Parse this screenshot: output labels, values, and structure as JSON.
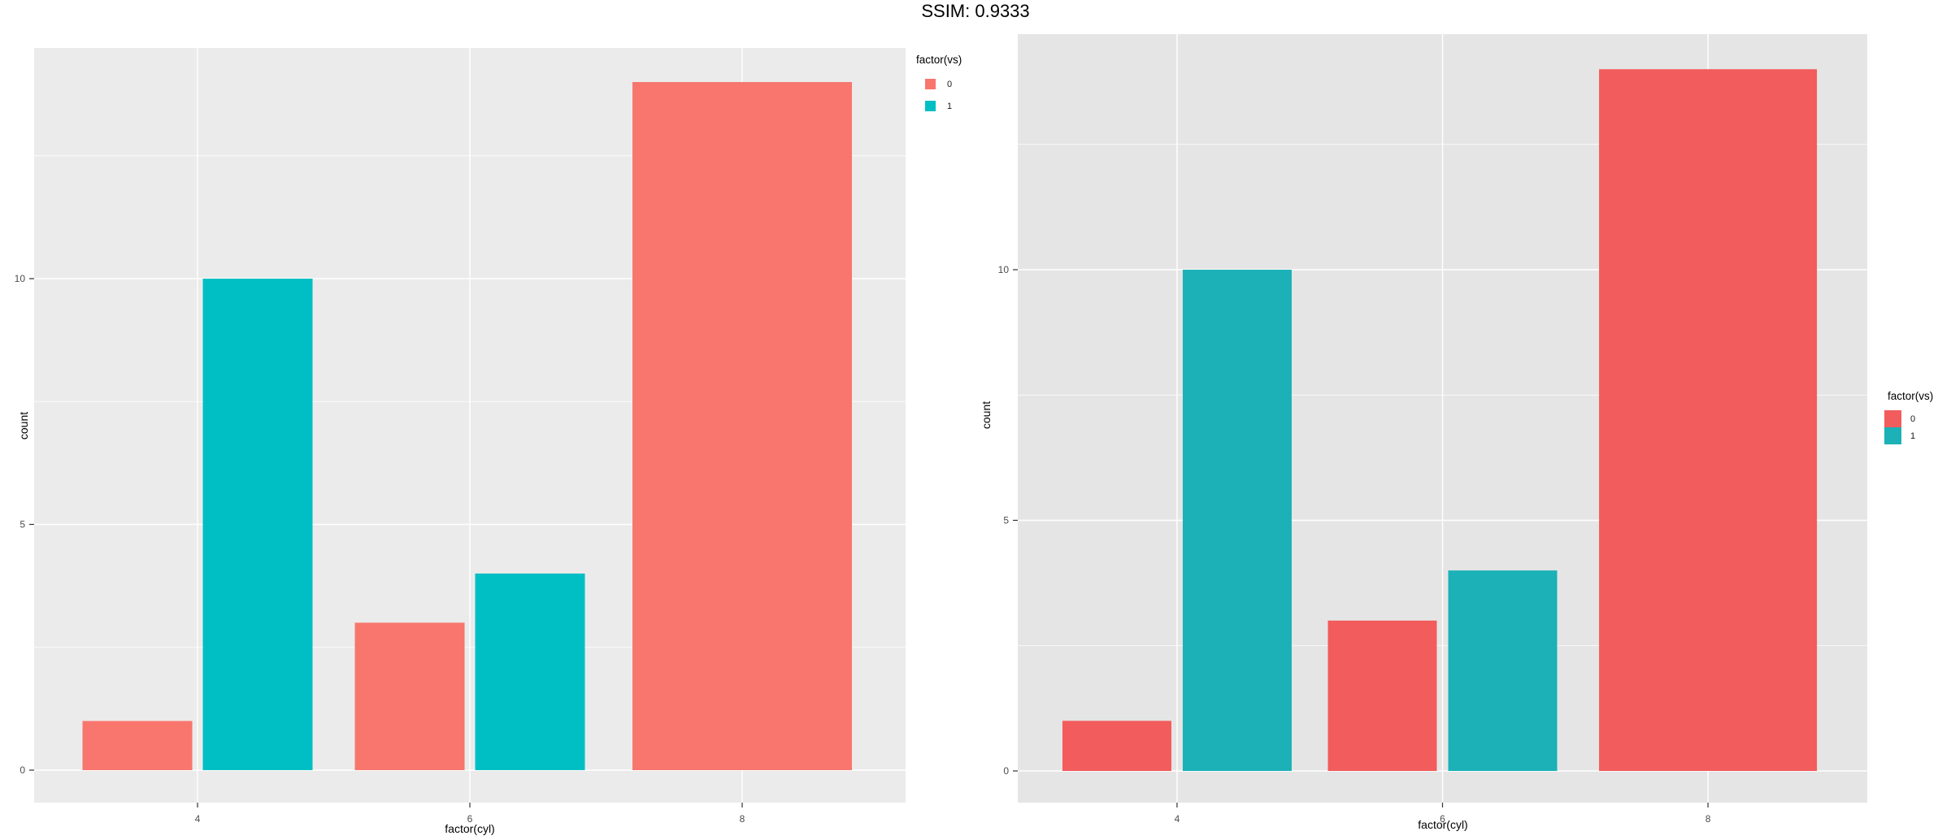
{
  "title": "SSIM: 0.9333",
  "chart_data": [
    {
      "type": "bar",
      "name": "original-plot",
      "categories": [
        "4",
        "6",
        "8"
      ],
      "series": [
        {
          "name": "0",
          "color": "#F8766D",
          "values": [
            1,
            3,
            14
          ]
        },
        {
          "name": "1",
          "color": "#00BFC4",
          "values": [
            10,
            4,
            0
          ]
        }
      ],
      "title": "",
      "xlabel": "factor(cyl)",
      "ylabel": "count",
      "yticks": [
        0,
        5,
        10
      ],
      "ytick_labels": [
        "0",
        "5",
        "10"
      ],
      "ylim": [
        -0.7,
        14.7
      ],
      "grid": "on",
      "panel_bg": "#EBEBEB",
      "grid_color": "#FFFFFF",
      "tick_text_color": "#4D4D4D",
      "tick_mark_color": "#333333",
      "legend": {
        "title": "factor(vs)",
        "position": "top-right-outside",
        "labels": [
          "0",
          "1"
        ]
      }
    },
    {
      "type": "bar",
      "name": "recreated-plot",
      "categories": [
        "4",
        "6",
        "8"
      ],
      "series": [
        {
          "name": "0",
          "color": "#F25C5C",
          "values": [
            1,
            3,
            14
          ]
        },
        {
          "name": "1",
          "color": "#1BB1B7",
          "values": [
            10,
            4,
            0
          ]
        }
      ],
      "title": "",
      "xlabel": "factor(cyl)",
      "ylabel": "count",
      "yticks": [
        0,
        5,
        10
      ],
      "ytick_labels": [
        "0",
        "5",
        "10"
      ],
      "ylim": [
        -0.7,
        14.7
      ],
      "grid": "on",
      "panel_bg": "#E5E5E5",
      "grid_color": "#FFFFFF",
      "tick_text_color": "#4D4D4D",
      "tick_mark_color": "#333333",
      "legend": {
        "title": "factor(vs)",
        "position": "middle-right-outside",
        "labels": [
          "0",
          "1"
        ]
      }
    }
  ]
}
